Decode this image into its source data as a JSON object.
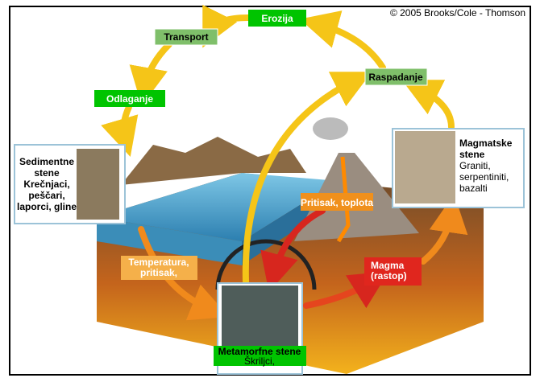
{
  "copyright": "© 2005 Brooks/Cole - Thomson",
  "steps": {
    "erosion": "Erozija",
    "transport": "Transport",
    "deposition": "Odlaganje",
    "weathering": "Raspadanje"
  },
  "sedimentary": {
    "title": [
      "Sedimentne",
      "stene"
    ],
    "examples": [
      "Krečnjaci,",
      "peščari,",
      "laporci, gline"
    ]
  },
  "igneous": {
    "title": [
      "Magmatske",
      "stene"
    ],
    "examples": [
      "Graniti,",
      "serpentiniti,",
      "bazalti"
    ]
  },
  "metamorphic": {
    "title": "Metamorfne stene",
    "examples": "Škriljci,"
  },
  "processes": {
    "pressure_heat": "Pritisak, toplota",
    "temperature_pressure": [
      "Temperatura,",
      "pritisak,"
    ],
    "magma": [
      "Magma",
      "(rastop)"
    ]
  }
}
